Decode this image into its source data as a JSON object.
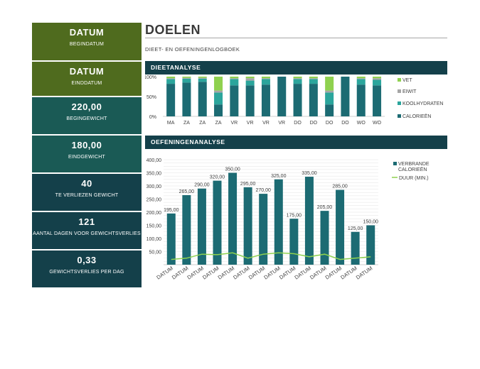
{
  "sidebar": {
    "cards": [
      {
        "value": "DATUM",
        "label": "BEGINDATUM",
        "color": "#4f6b1e"
      },
      {
        "value": "DATUM",
        "label": "EINDDATUM",
        "color": "#4f6b1e"
      },
      {
        "value": "220,00",
        "label": "BEGINGEWICHT",
        "color": "#1a5a55"
      },
      {
        "value": "180,00",
        "label": "EINDGEWICHT",
        "color": "#1a5a55"
      },
      {
        "value": "40",
        "label": "TE VERLIEZEN GEWICHT",
        "color": "#14404a"
      },
      {
        "value": "121",
        "label": "AANTAL DAGEN VOOR GEWICHTSVERLIES",
        "color": "#14404a"
      },
      {
        "value": "0,33",
        "label": "GEWICHTSVERLIES PER DAG",
        "color": "#14404a"
      }
    ]
  },
  "header": {
    "title": "DOELEN",
    "subtitle": "DIEET- EN OEFENINGENLOGBOEK"
  },
  "sections": {
    "diet": "DIEETANALYSE",
    "exercise": "OEFENINGENANALYSE"
  },
  "chart_data": [
    {
      "type": "bar",
      "stacked": "percent",
      "categories": [
        "MA",
        "ZA",
        "ZA",
        "ZA",
        "VR",
        "VR",
        "VR",
        "VR",
        "DO",
        "DO",
        "DO",
        "DO",
        "WO",
        "WO"
      ],
      "yticks": [
        "0%",
        "50%",
        "100%"
      ],
      "ylim": [
        0,
        100
      ],
      "legend_position": "right",
      "series": [
        {
          "name": "CALORIEËN",
          "color": "#1c6b73",
          "values": [
            82,
            85,
            87,
            30,
            78,
            78,
            80,
            100,
            82,
            82,
            30,
            100,
            80,
            78
          ]
        },
        {
          "name": "KOOLHYDRATEN",
          "color": "#2ba59c",
          "values": [
            12,
            10,
            8,
            30,
            16,
            12,
            14,
            0,
            12,
            12,
            30,
            0,
            14,
            14
          ]
        },
        {
          "name": "EIWIT",
          "color": "#a6a6a6",
          "values": [
            2,
            2,
            2,
            5,
            2,
            6,
            2,
            0,
            2,
            2,
            5,
            0,
            2,
            4
          ]
        },
        {
          "name": "VET",
          "color": "#8fd14f",
          "values": [
            4,
            3,
            3,
            35,
            4,
            4,
            4,
            0,
            4,
            4,
            35,
            0,
            4,
            4
          ]
        }
      ]
    },
    {
      "type": "bar",
      "categories": [
        "DATUM",
        "DATUM",
        "DATUM",
        "DATUM",
        "DATUM",
        "DATUM",
        "DATUM",
        "DATUM",
        "DATUM",
        "DATUM",
        "DATUM",
        "DATUM",
        "DATUM",
        "DATUM"
      ],
      "ylim": [
        0,
        400
      ],
      "yticks": [
        "400,00",
        "350,00",
        "300,00",
        "250,00",
        "200,00",
        "150,00",
        "100,00",
        "50,00"
      ],
      "grid": true,
      "legend_position": "right",
      "series": [
        {
          "name": "VERBRANDE CALORIEËN",
          "type": "bar",
          "color": "#1c6b73",
          "values": [
            195,
            265,
            290,
            320,
            350,
            295,
            270,
            325,
            175,
            335,
            205,
            285,
            125,
            150
          ],
          "labels": [
            "195,00",
            "265,00",
            "290,00",
            "320,00",
            "350,00",
            "295,00",
            "270,00",
            "325,00",
            "175,00",
            "335,00",
            "205,00",
            "285,00",
            "125,00",
            "150,00"
          ]
        },
        {
          "name": "DUUR (MIN.)",
          "type": "line",
          "color": "#8fd14f",
          "values": [
            20,
            25,
            40,
            38,
            45,
            25,
            40,
            45,
            42,
            30,
            40,
            20,
            25,
            30
          ]
        }
      ]
    }
  ]
}
